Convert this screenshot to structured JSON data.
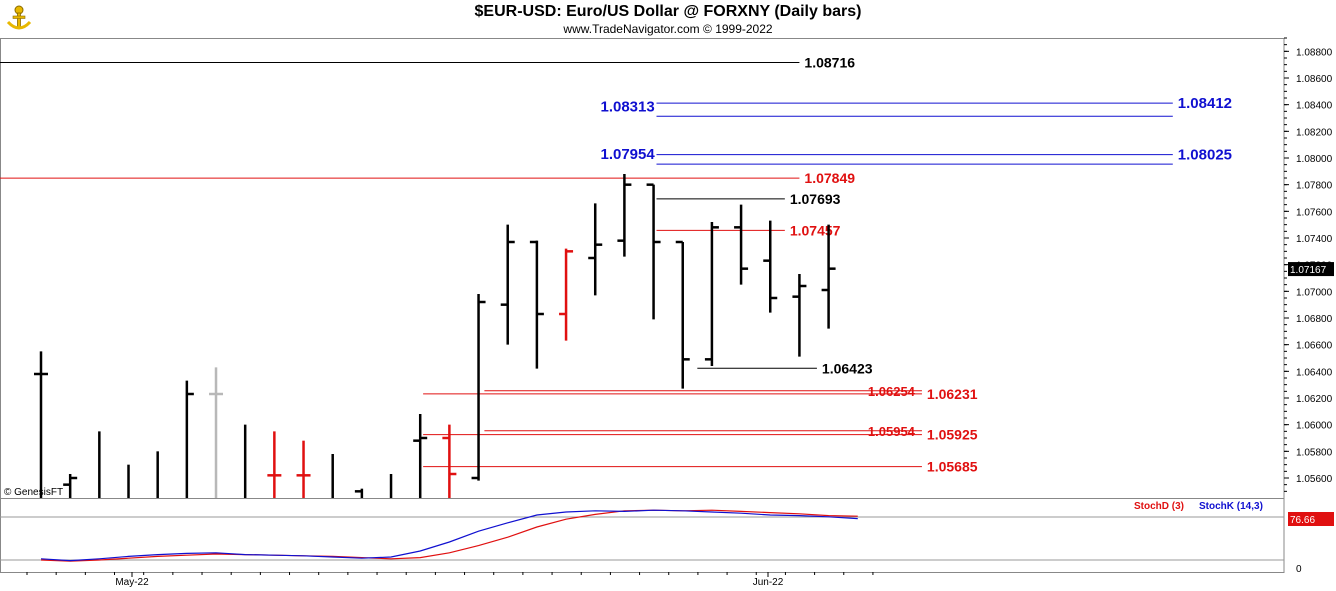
{
  "header": {
    "title": "$EUR-USD:  Euro/US Dollar @ FORXNY  (Daily bars)",
    "subtitle": "www.TradeNavigator.com © 1999-2022"
  },
  "watermark": "© GenesisFT",
  "colors": {
    "black": "#000000",
    "red": "#e01010",
    "blue": "#1010d0",
    "gray": "#b8b8b8"
  },
  "chart_data": [
    {
      "type": "ohlc",
      "ylim": [
        1.0545,
        1.089
      ],
      "yticks": [
        "1.08800",
        "1.08600",
        "1.08400",
        "1.08200",
        "1.08000",
        "1.07800",
        "1.07600",
        "1.07400",
        "1.07200",
        "1.07000",
        "1.06800",
        "1.06600",
        "1.06400",
        "1.06200",
        "1.06000",
        "1.05800",
        "1.05600"
      ],
      "x_labels": [
        "May-22",
        "Jun-22"
      ],
      "last_price": "1.07167",
      "bars": [
        {
          "high": 1.0655,
          "low": 1.0545,
          "open": 1.0638,
          "close": 1.0638,
          "color": "black"
        },
        {
          "high": 1.0563,
          "low": 1.0545,
          "open": 1.0555,
          "close": 1.056,
          "color": "black"
        },
        {
          "high": 1.0595,
          "low": 1.0545,
          "open": null,
          "close": null,
          "color": "black"
        },
        {
          "high": 1.057,
          "low": 1.0545,
          "open": null,
          "close": null,
          "color": "black"
        },
        {
          "high": 1.058,
          "low": 1.0545,
          "open": null,
          "close": null,
          "color": "black"
        },
        {
          "high": 1.0633,
          "low": 1.0545,
          "open": null,
          "close": 1.0623,
          "color": "black"
        },
        {
          "high": 1.0643,
          "low": 1.0545,
          "open": 1.0623,
          "close": 1.0623,
          "color": "gray"
        },
        {
          "high": 1.06,
          "low": 1.0545,
          "open": null,
          "close": null,
          "color": "black"
        },
        {
          "high": 1.0595,
          "low": 1.0545,
          "open": 1.0562,
          "close": 1.0562,
          "color": "red"
        },
        {
          "high": 1.0588,
          "low": 1.0545,
          "open": 1.0562,
          "close": 1.0562,
          "color": "red"
        },
        {
          "high": 1.0578,
          "low": 1.0545,
          "open": null,
          "close": null,
          "color": "black"
        },
        {
          "high": 1.0552,
          "low": 1.0545,
          "open": 1.055,
          "close": null,
          "color": "black"
        },
        {
          "high": 1.0563,
          "low": 1.0545,
          "open": null,
          "close": null,
          "color": "black"
        },
        {
          "high": 1.0608,
          "low": 1.0545,
          "open": 1.0588,
          "close": 1.059,
          "color": "black"
        },
        {
          "high": 1.06,
          "low": 1.0545,
          "open": 1.059,
          "close": 1.0563,
          "color": "red"
        },
        {
          "high": 1.0698,
          "low": 1.0558,
          "open": 1.056,
          "close": 1.0692,
          "color": "black"
        },
        {
          "high": 1.075,
          "low": 1.066,
          "open": 1.069,
          "close": 1.0737,
          "color": "black"
        },
        {
          "high": 1.0738,
          "low": 1.0642,
          "open": 1.0737,
          "close": 1.0683,
          "color": "black"
        },
        {
          "high": 1.0732,
          "low": 1.0663,
          "open": 1.0683,
          "close": 1.073,
          "color": "red"
        },
        {
          "high": 1.0766,
          "low": 1.0697,
          "open": 1.0725,
          "close": 1.0735,
          "color": "black"
        },
        {
          "high": 1.0788,
          "low": 1.0726,
          "open": 1.0738,
          "close": 1.078,
          "color": "black"
        },
        {
          "high": 1.078,
          "low": 1.0679,
          "open": 1.078,
          "close": 1.0737,
          "color": "black"
        },
        {
          "high": 1.0737,
          "low": 1.0627,
          "open": 1.0737,
          "close": 1.0649,
          "color": "black"
        },
        {
          "high": 1.0752,
          "low": 1.0644,
          "open": 1.0649,
          "close": 1.0748,
          "color": "black"
        },
        {
          "high": 1.0765,
          "low": 1.0705,
          "open": 1.0748,
          "close": 1.0717,
          "color": "black"
        },
        {
          "high": 1.0753,
          "low": 1.0684,
          "open": 1.0723,
          "close": 1.0695,
          "color": "black"
        },
        {
          "high": 1.0713,
          "low": 1.0651,
          "open": 1.0696,
          "close": 1.0704,
          "color": "black"
        },
        {
          "high": 1.075,
          "low": 1.0672,
          "open": 1.0701,
          "close": 1.0717,
          "color": "black"
        }
      ],
      "levels": [
        {
          "price": "1.08716",
          "color": "black",
          "x_start_bar": -16,
          "x_end_bar": 26,
          "label_side": "right"
        },
        {
          "price": "1.08412",
          "color": "blue",
          "x_start_bar": 21.1,
          "x_end_bar": 38.8,
          "label_side": "right"
        },
        {
          "price": "1.08313",
          "color": "blue",
          "x_start_bar": 21.1,
          "x_end_bar": 38.8,
          "label_side": "left"
        },
        {
          "price": "1.08025",
          "color": "blue",
          "x_start_bar": 21.1,
          "x_end_bar": 38.8,
          "label_side": "right"
        },
        {
          "price": "1.07954",
          "color": "blue",
          "x_start_bar": 21.1,
          "x_end_bar": 38.8,
          "label_side": "left"
        },
        {
          "price": "1.07849",
          "color": "red",
          "x_start_bar": -16,
          "x_end_bar": 26,
          "label_side": "right"
        },
        {
          "price": "1.07693",
          "color": "black",
          "x_start_bar": 21.1,
          "x_end_bar": 25.5,
          "label_side": "right"
        },
        {
          "price": "1.07457",
          "color": "red",
          "x_start_bar": 21.1,
          "x_end_bar": 25.5,
          "label_side": "right"
        },
        {
          "price": "1.06423",
          "color": "black",
          "x_start_bar": 22.5,
          "x_end_bar": 26.6,
          "label_side": "right"
        },
        {
          "price": "1.06254",
          "color": "red",
          "x_start_bar": 15.2,
          "x_end_bar": 30.2,
          "label_side": "right_inner"
        },
        {
          "price": "1.06231",
          "color": "red",
          "x_start_bar": 13.1,
          "x_end_bar": 30.2,
          "label_side": "right"
        },
        {
          "price": "1.05954",
          "color": "red",
          "x_start_bar": 15.2,
          "x_end_bar": 30.2,
          "label_side": "right_inner"
        },
        {
          "price": "1.05925",
          "color": "red",
          "x_start_bar": 13.1,
          "x_end_bar": 30.2,
          "label_side": "right"
        },
        {
          "price": "1.05685",
          "color": "red",
          "x_start_bar": 13.1,
          "x_end_bar": 30.2,
          "label_side": "right"
        }
      ]
    },
    {
      "type": "line",
      "legend": [
        "StochD (3)",
        "StochK (14,3)"
      ],
      "yticks": [
        "0"
      ],
      "last_value": "76.66",
      "series": [
        {
          "name": "StochD (3)",
          "color": "red",
          "values": [
            10,
            8,
            10,
            13,
            16,
            18,
            20,
            19,
            18,
            17,
            16,
            14,
            12,
            14,
            22,
            34,
            48,
            65,
            78,
            86,
            92,
            93,
            92,
            93,
            91,
            89,
            87,
            84,
            83
          ]
        },
        {
          "name": "StochK (14,3)",
          "color": "blue",
          "values": [
            12,
            9,
            12,
            16,
            19,
            21,
            22,
            19,
            18,
            17,
            15,
            13,
            15,
            25,
            40,
            58,
            72,
            85,
            90,
            92,
            91,
            93,
            92,
            90,
            88,
            85,
            84,
            82,
            79
          ]
        }
      ]
    }
  ]
}
